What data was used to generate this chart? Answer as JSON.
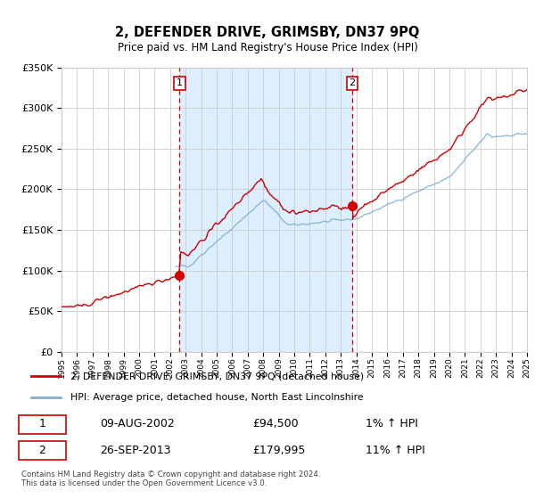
{
  "title": "2, DEFENDER DRIVE, GRIMSBY, DN37 9PQ",
  "subtitle": "Price paid vs. HM Land Registry's House Price Index (HPI)",
  "legend_line1": "2, DEFENDER DRIVE, GRIMSBY, DN37 9PQ (detached house)",
  "legend_line2": "HPI: Average price, detached house, North East Lincolnshire",
  "sale1_date": "09-AUG-2002",
  "sale1_price": "£94,500",
  "sale1_hpi": "1% ↑ HPI",
  "sale1_year": 2002.6,
  "sale1_value": 94500,
  "sale2_date": "26-SEP-2013",
  "sale2_price": "£179,995",
  "sale2_hpi": "11% ↑ HPI",
  "sale2_year": 2013.73,
  "sale2_value": 179995,
  "red_color": "#cc0000",
  "blue_color": "#7eafd4",
  "shade_color": "#ddeeff",
  "grid_color": "#cccccc",
  "bg_color": "#ffffff",
  "year_start": 1995,
  "year_end": 2025,
  "ymin": 0,
  "ymax": 350000,
  "footer": "Contains HM Land Registry data © Crown copyright and database right 2024.\nThis data is licensed under the Open Government Licence v3.0."
}
